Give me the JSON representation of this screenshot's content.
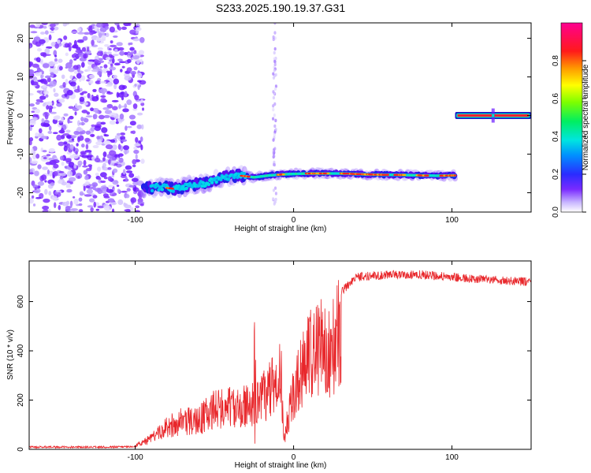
{
  "title": "S233.2025.190.19.37.G31",
  "chart_data": [
    {
      "type": "heatmap",
      "xlabel": "Height of straight line (km)",
      "ylabel": "Frequency (Hz)",
      "xlim": [
        -167,
        150
      ],
      "ylim": [
        -25,
        24
      ],
      "xticks": [
        -100,
        0,
        100
      ],
      "yticks": [
        -20,
        -10,
        0,
        10,
        20
      ],
      "colorbar": {
        "label": "Normalized spectral amplitude",
        "range": [
          0,
          1
        ],
        "ticks": [
          "0.0",
          "0.2",
          "0.4",
          "0.6",
          "0.8"
        ]
      },
      "features": {
        "noise_region_x": [
          -167,
          -95
        ],
        "main_track": [
          {
            "x": -95,
            "y": -19
          },
          {
            "x": -85,
            "y": -18.5
          },
          {
            "x": -75,
            "y": -19
          },
          {
            "x": -65,
            "y": -18
          },
          {
            "x": -55,
            "y": -17.5
          },
          {
            "x": -45,
            "y": -16
          },
          {
            "x": -35,
            "y": -15.5
          },
          {
            "x": -25,
            "y": -16
          },
          {
            "x": -15,
            "y": -15.5
          },
          {
            "x": -5,
            "y": -15.2
          },
          {
            "x": 10,
            "y": -15
          },
          {
            "x": 30,
            "y": -15
          },
          {
            "x": 50,
            "y": -15.3
          },
          {
            "x": 70,
            "y": -15.4
          },
          {
            "x": 90,
            "y": -15.6
          },
          {
            "x": 102,
            "y": -15.5
          }
        ],
        "upper_track": {
          "x_start": 102,
          "x_end": 150,
          "y": 0
        }
      }
    },
    {
      "type": "line",
      "xlabel": "Height of straight line (km)",
      "ylabel": "SNR (10 * v/v)",
      "xlim": [
        -167,
        150
      ],
      "ylim": [
        0,
        765
      ],
      "xticks": [
        -100,
        0,
        100
      ],
      "yticks": [
        0,
        200,
        400,
        600
      ],
      "color": "#e8262a",
      "envelope": [
        {
          "x": -167,
          "y": 15
        },
        {
          "x": -120,
          "y": 15
        },
        {
          "x": -100,
          "y": 18
        },
        {
          "x": -90,
          "y": 60
        },
        {
          "x": -80,
          "y": 120
        },
        {
          "x": -70,
          "y": 160
        },
        {
          "x": -60,
          "y": 170
        },
        {
          "x": -50,
          "y": 220
        },
        {
          "x": -40,
          "y": 250
        },
        {
          "x": -30,
          "y": 240
        },
        {
          "x": -20,
          "y": 300
        },
        {
          "x": -12,
          "y": 350
        },
        {
          "x": -8,
          "y": 420
        },
        {
          "x": -6,
          "y": 50
        },
        {
          "x": -3,
          "y": 200
        },
        {
          "x": 0,
          "y": 300
        },
        {
          "x": 5,
          "y": 450
        },
        {
          "x": 10,
          "y": 520
        },
        {
          "x": 20,
          "y": 580
        },
        {
          "x": 30,
          "y": 640
        },
        {
          "x": 40,
          "y": 700
        },
        {
          "x": 60,
          "y": 710
        },
        {
          "x": 80,
          "y": 710
        },
        {
          "x": 100,
          "y": 700
        },
        {
          "x": 120,
          "y": 690
        },
        {
          "x": 150,
          "y": 680
        }
      ]
    }
  ]
}
